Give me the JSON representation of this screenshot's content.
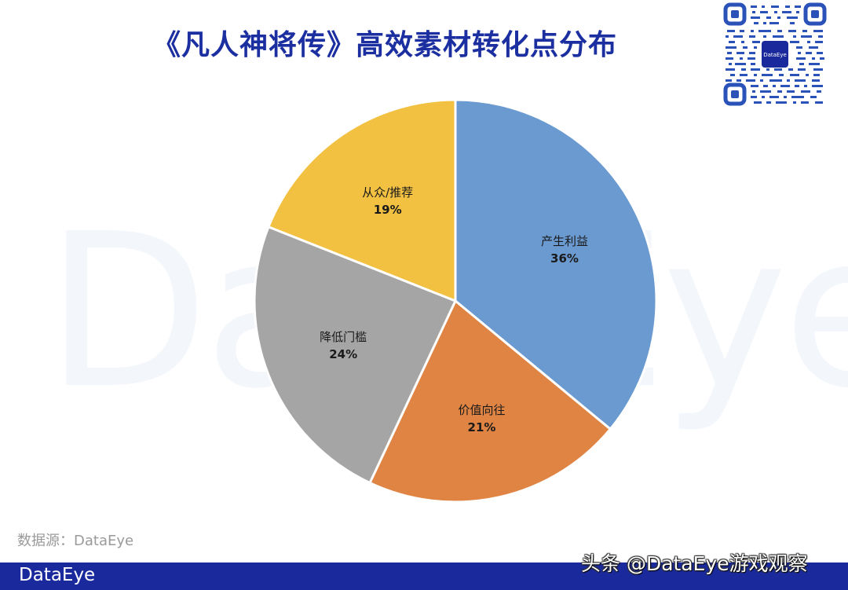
{
  "title": "《凡人神将传》高效素材转化点分布",
  "watermark": "DataEye",
  "qr": {
    "center_label": "DataEye"
  },
  "source": "数据源：DataEye",
  "footer": {
    "logo": "DataEye",
    "attribution": "头条 @DataEye游戏观察"
  },
  "colors": {
    "title": "#1b2fa0",
    "footer_bar": "#1a2a9c",
    "slice_1": "#6A9AD0",
    "slice_2": "#E08444",
    "slice_3": "#A5A5A5",
    "slice_4": "#F3C141"
  },
  "chart_data": {
    "type": "pie",
    "title": "《凡人神将传》高效素材转化点分布",
    "categories": [
      "产生利益",
      "价值向往",
      "降低门槛",
      "从众/推荐"
    ],
    "values": [
      36,
      21,
      24,
      19
    ],
    "labels": [
      "36%",
      "21%",
      "24%",
      "19%"
    ],
    "colors": [
      "#6A9AD0",
      "#E08444",
      "#A5A5A5",
      "#F3C141"
    ],
    "start_angle": "12 o'clock",
    "direction": "clockwise",
    "legend": "none (labels inside slices)",
    "source": "数据源：DataEye"
  }
}
